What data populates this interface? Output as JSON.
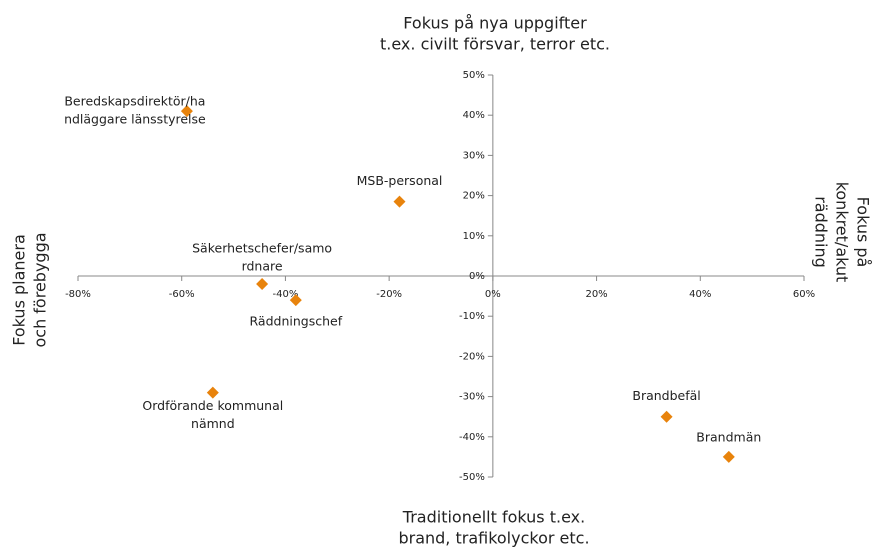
{
  "chart_data": {
    "type": "scatter",
    "top_label": [
      "Fokus på nya uppgifter",
      "t.ex. civilt försvar, terror etc."
    ],
    "bottom_label": [
      "Traditionellt fokus t.ex.",
      "brand, trafikolyckor etc."
    ],
    "left_label": [
      "Fokus planera",
      "och förebygga"
    ],
    "right_label": [
      "Fokus på",
      "konkret/akut",
      "räddning"
    ],
    "labels": [
      [
        "Beredskapsdirektör/ha",
        "ndläggare länsstyrelse"
      ],
      [
        "MSB-personal"
      ],
      [
        "Säkerhetschefer/samo",
        "rdnare"
      ],
      [
        "Räddningschef"
      ],
      [
        "Ordförande kommunal",
        "nämnd"
      ],
      [
        "Brandbefäl"
      ],
      [
        "Brandmän"
      ]
    ],
    "x": [
      -59,
      -18,
      -44.5,
      -38,
      -54,
      33.5,
      45.5
    ],
    "values": [
      41,
      18.5,
      -2,
      -6,
      -29,
      -35,
      -45
    ],
    "color": "#e8830c",
    "xlim": [
      -80,
      60
    ],
    "xticks": [
      {
        "value": -80,
        "label": "-80%"
      },
      {
        "value": -60,
        "label": "-60%"
      },
      {
        "value": -40,
        "label": "-40%"
      },
      {
        "value": -20,
        "label": "-20%"
      },
      {
        "value": 0,
        "label": "0%"
      },
      {
        "value": 20,
        "label": "20%"
      },
      {
        "value": 40,
        "label": "40%"
      },
      {
        "value": 60,
        "label": "60%"
      }
    ],
    "ylim": [
      -50,
      50
    ],
    "yticks": [
      {
        "value": -50,
        "label": "-50%"
      },
      {
        "value": -40,
        "label": "-40%"
      },
      {
        "value": -30,
        "label": "-30%"
      },
      {
        "value": -20,
        "label": "-20%"
      },
      {
        "value": -10,
        "label": "-10%"
      },
      {
        "value": 0,
        "label": "0%"
      },
      {
        "value": 10,
        "label": "10%"
      },
      {
        "value": 20,
        "label": "20%"
      },
      {
        "value": 30,
        "label": "30%"
      },
      {
        "value": 40,
        "label": "40%"
      },
      {
        "value": 50,
        "label": "50%"
      }
    ]
  }
}
